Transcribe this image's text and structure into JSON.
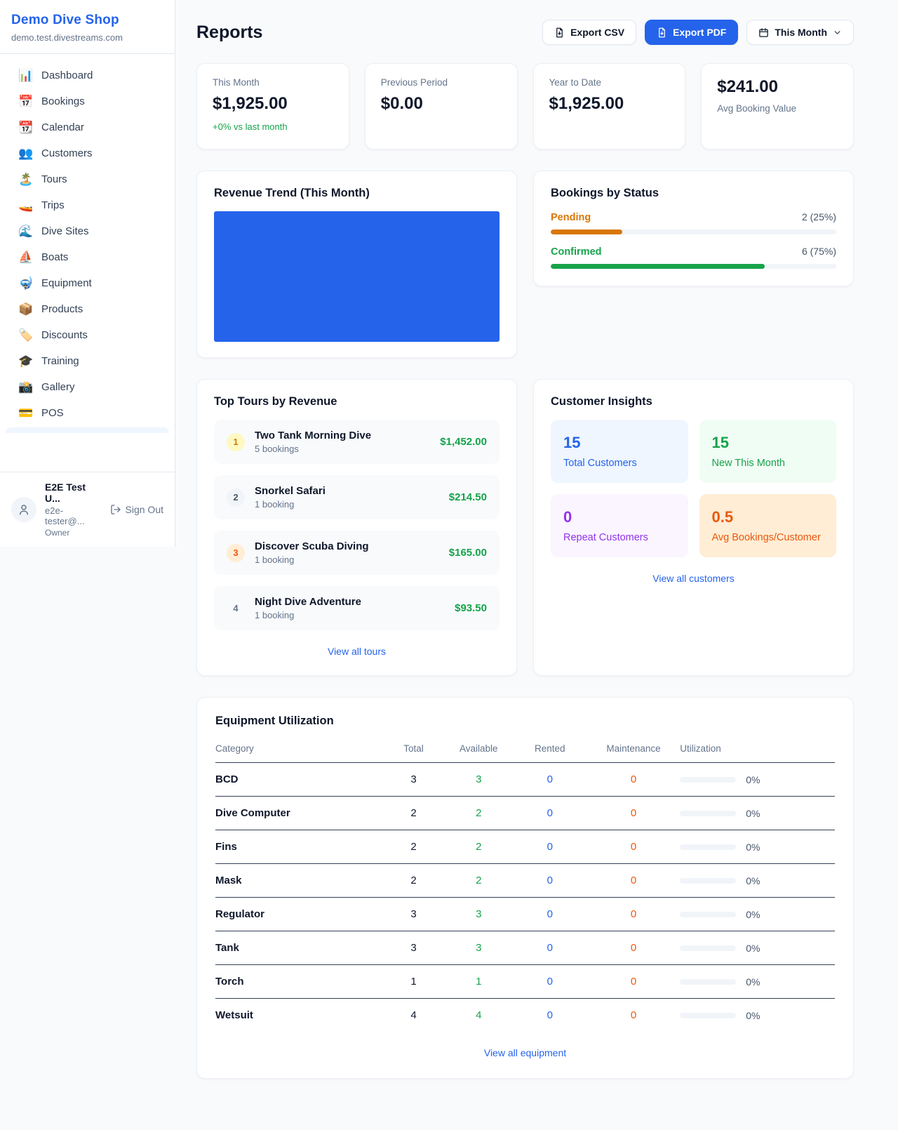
{
  "sidebar": {
    "title": "Demo Dive Shop",
    "domain": "demo.test.divestreams.com",
    "items": [
      {
        "label": "Dashboard",
        "emoji": "📊"
      },
      {
        "label": "Bookings",
        "emoji": "📅"
      },
      {
        "label": "Calendar",
        "emoji": "📆"
      },
      {
        "label": "Customers",
        "emoji": "👥"
      },
      {
        "label": "Tours",
        "emoji": "🏝️"
      },
      {
        "label": "Trips",
        "emoji": "🚤"
      },
      {
        "label": "Dive Sites",
        "emoji": "🌊"
      },
      {
        "label": "Boats",
        "emoji": "⛵"
      },
      {
        "label": "Equipment",
        "emoji": "🤿"
      },
      {
        "label": "Products",
        "emoji": "📦"
      },
      {
        "label": "Discounts",
        "emoji": "🏷️"
      },
      {
        "label": "Training",
        "emoji": "🎓"
      },
      {
        "label": "Gallery",
        "emoji": "📸"
      },
      {
        "label": "POS",
        "emoji": "💳"
      }
    ],
    "user": {
      "name": "E2E Test U...",
      "email": "e2e-tester@...",
      "role": "Owner",
      "sign_out": "Sign Out"
    }
  },
  "header": {
    "title": "Reports",
    "export_csv": "Export CSV",
    "export_pdf": "Export PDF",
    "period": "This Month"
  },
  "stats": {
    "this_month": {
      "label": "This Month",
      "value": "$1,925.00",
      "delta": "+0% vs last month"
    },
    "previous_period": {
      "label": "Previous Period",
      "value": "$0.00"
    },
    "year_to_date": {
      "label": "Year to Date",
      "value": "$1,925.00"
    },
    "avg_booking": {
      "value": "$241.00",
      "label": "Avg Booking Value"
    }
  },
  "revenue_trend": {
    "title": "Revenue Trend (This Month)",
    "bar_color": "#2563eb",
    "fill_pct": 100
  },
  "bookings_by_status": {
    "title": "Bookings by Status",
    "rows": [
      {
        "label": "Pending",
        "value": "2 (25%)",
        "pct": 25,
        "color": "#d97706"
      },
      {
        "label": "Confirmed",
        "value": "6 (75%)",
        "pct": 75,
        "color": "#16a34a"
      }
    ]
  },
  "top_tours": {
    "title": "Top Tours by Revenue",
    "items": [
      {
        "rank": "1",
        "name": "Two Tank Morning Dive",
        "bookings": "5 bookings",
        "revenue": "$1,452.00"
      },
      {
        "rank": "2",
        "name": "Snorkel Safari",
        "bookings": "1 booking",
        "revenue": "$214.50"
      },
      {
        "rank": "3",
        "name": "Discover Scuba Diving",
        "bookings": "1 booking",
        "revenue": "$165.00"
      },
      {
        "rank": "4",
        "name": "Night Dive Adventure",
        "bookings": "1 booking",
        "revenue": "$93.50"
      }
    ],
    "view_all": "View all tours"
  },
  "customer_insights": {
    "title": "Customer Insights",
    "tiles": [
      {
        "value": "15",
        "label": "Total Customers"
      },
      {
        "value": "15",
        "label": "New This Month"
      },
      {
        "value": "0",
        "label": "Repeat Customers"
      },
      {
        "value": "0.5",
        "label": "Avg Bookings/Customer"
      }
    ],
    "view_all": "View all customers"
  },
  "equipment": {
    "title": "Equipment Utilization",
    "columns": [
      "Category",
      "Total",
      "Available",
      "Rented",
      "Maintenance",
      "Utilization"
    ],
    "rows": [
      {
        "category": "BCD",
        "total": "3",
        "available": "3",
        "rented": "0",
        "maintenance": "0",
        "utilization": "0%",
        "utilization_pct": 0
      },
      {
        "category": "Dive Computer",
        "total": "2",
        "available": "2",
        "rented": "0",
        "maintenance": "0",
        "utilization": "0%",
        "utilization_pct": 0
      },
      {
        "category": "Fins",
        "total": "2",
        "available": "2",
        "rented": "0",
        "maintenance": "0",
        "utilization": "0%",
        "utilization_pct": 0
      },
      {
        "category": "Mask",
        "total": "2",
        "available": "2",
        "rented": "0",
        "maintenance": "0",
        "utilization": "0%",
        "utilization_pct": 0
      },
      {
        "category": "Regulator",
        "total": "3",
        "available": "3",
        "rented": "0",
        "maintenance": "0",
        "utilization": "0%",
        "utilization_pct": 0
      },
      {
        "category": "Tank",
        "total": "3",
        "available": "3",
        "rented": "0",
        "maintenance": "0",
        "utilization": "0%",
        "utilization_pct": 0
      },
      {
        "category": "Torch",
        "total": "1",
        "available": "1",
        "rented": "0",
        "maintenance": "0",
        "utilization": "0%",
        "utilization_pct": 0
      },
      {
        "category": "Wetsuit",
        "total": "4",
        "available": "4",
        "rented": "0",
        "maintenance": "0",
        "utilization": "0%",
        "utilization_pct": 0
      }
    ],
    "view_all": "View all equipment"
  },
  "colors": {
    "accent": "#2563eb",
    "green": "#16a34a",
    "pending_orange": "#d97706",
    "maintenance_orange": "#ea580c",
    "purple": "#9333ea"
  }
}
